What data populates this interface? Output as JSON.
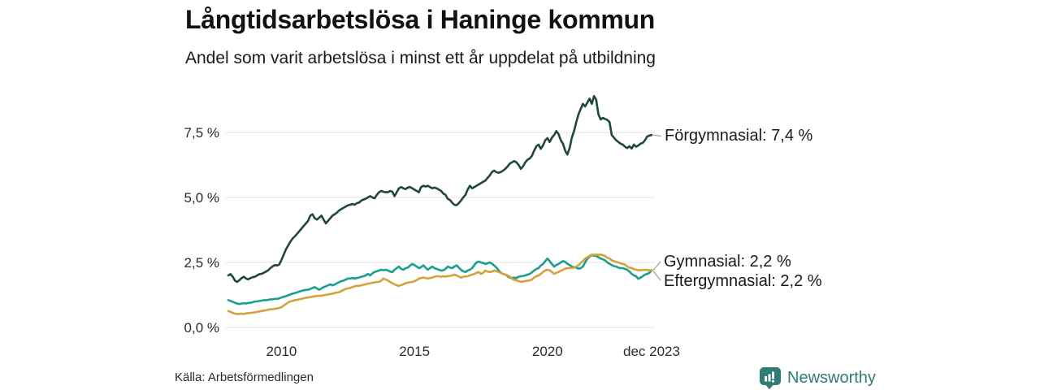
{
  "header": {
    "title": "Långtidsarbetslösa i Haninge kommun",
    "subtitle": "Andel som varit arbetslösa i minst ett år uppdelat på utbildning"
  },
  "footer": {
    "source": "Källa: Arbetsförmedlingen",
    "brand": "Newsworthy"
  },
  "colors": {
    "forgymnasial": "#1f4741",
    "gymnasial": "#18a08d",
    "eftergymnasial": "#d5a239",
    "grid": "#e3e3e3",
    "axis_text": "#2b2b2b",
    "connector": "#999999",
    "brand": "#2e7d74"
  },
  "chart_data": {
    "type": "line",
    "title": "Långtidsarbetslösa i Haninge kommun",
    "subtitle": "Andel som varit arbetslösa i minst ett år uppdelat på utbildning",
    "x_interval": "monthly",
    "x_range": [
      "2008-01",
      "2023-12"
    ],
    "ylim": [
      0,
      9.2
    ],
    "grid": "horizontal",
    "legend_position": "end-of-line-labels",
    "y_ticks": [
      {
        "value": 0.0,
        "label": "0,0 %"
      },
      {
        "value": 2.5,
        "label": "2,5 %"
      },
      {
        "value": 5.0,
        "label": "5,0 %"
      },
      {
        "value": 7.5,
        "label": "7,5 %"
      }
    ],
    "x_ticks": [
      {
        "index": 24,
        "label": "2010"
      },
      {
        "index": 84,
        "label": "2015"
      },
      {
        "index": 144,
        "label": "2020"
      },
      {
        "index": 191,
        "label": "dec 2023"
      }
    ],
    "series": [
      {
        "name": "Förgymnasial",
        "color": "#1f4741",
        "end_label": "Förgymnasial: 7,4 %",
        "end_value": "7,4 %",
        "values": [
          2.0,
          2.05,
          1.95,
          1.8,
          1.75,
          1.82,
          1.9,
          1.95,
          1.88,
          1.85,
          1.9,
          1.93,
          1.95,
          2.0,
          2.05,
          2.06,
          2.1,
          2.15,
          2.2,
          2.28,
          2.35,
          2.4,
          2.38,
          2.42,
          2.6,
          2.8,
          3.0,
          3.15,
          3.3,
          3.42,
          3.5,
          3.6,
          3.7,
          3.8,
          3.9,
          4.0,
          4.1,
          4.3,
          4.35,
          4.2,
          4.15,
          4.22,
          4.3,
          4.15,
          4.0,
          4.1,
          4.2,
          4.3,
          4.35,
          4.42,
          4.5,
          4.55,
          4.6,
          4.65,
          4.7,
          4.72,
          4.75,
          4.72,
          4.78,
          4.8,
          4.88,
          4.92,
          4.95,
          5.0,
          5.05,
          5.0,
          4.97,
          5.1,
          5.2,
          5.25,
          5.22,
          5.2,
          5.2,
          5.25,
          5.22,
          5.05,
          5.2,
          5.35,
          5.4,
          5.35,
          5.32,
          5.38,
          5.4,
          5.35,
          5.3,
          5.25,
          5.2,
          5.4,
          5.45,
          5.42,
          5.45,
          5.4,
          5.35,
          5.38,
          5.35,
          5.3,
          5.25,
          5.15,
          5.1,
          4.95,
          4.9,
          4.8,
          4.72,
          4.7,
          4.78,
          4.88,
          5.0,
          5.1,
          5.3,
          5.45,
          5.35,
          5.4,
          5.45,
          5.5,
          5.55,
          5.6,
          5.65,
          5.75,
          5.85,
          5.98,
          6.03,
          5.97,
          5.95,
          5.98,
          6.03,
          6.1,
          6.19,
          6.3,
          6.35,
          6.4,
          6.35,
          6.25,
          6.1,
          6.2,
          6.35,
          6.45,
          6.5,
          6.6,
          6.8,
          6.97,
          7.03,
          6.87,
          7.0,
          7.2,
          7.28,
          7.13,
          7.3,
          7.4,
          7.55,
          7.44,
          7.2,
          7.07,
          6.8,
          6.65,
          6.9,
          7.3,
          7.55,
          7.9,
          8.2,
          8.4,
          8.6,
          8.5,
          8.65,
          8.8,
          8.6,
          8.9,
          8.75,
          8.2,
          8.0,
          8.06,
          8.02,
          7.98,
          7.9,
          7.4,
          7.3,
          7.2,
          7.13,
          7.07,
          7.03,
          6.95,
          6.9,
          6.97,
          6.88,
          7.03,
          6.95,
          7.0,
          7.07,
          7.1,
          7.2,
          7.34,
          7.38,
          7.4
        ]
      },
      {
        "name": "Gymnasial",
        "color": "#18a08d",
        "end_label": "Gymnasial: 2,2 %",
        "end_value": "2,2 %",
        "values": [
          1.05,
          1.02,
          0.98,
          0.95,
          0.92,
          0.9,
          0.92,
          0.93,
          0.92,
          0.94,
          0.95,
          0.97,
          1.0,
          1.0,
          1.02,
          1.03,
          1.05,
          1.05,
          1.06,
          1.08,
          1.08,
          1.1,
          1.1,
          1.12,
          1.15,
          1.18,
          1.2,
          1.24,
          1.27,
          1.3,
          1.32,
          1.35,
          1.38,
          1.4,
          1.43,
          1.44,
          1.45,
          1.48,
          1.52,
          1.55,
          1.5,
          1.45,
          1.5,
          1.55,
          1.58,
          1.62,
          1.66,
          1.62,
          1.65,
          1.7,
          1.74,
          1.78,
          1.8,
          1.84,
          1.88,
          1.88,
          1.9,
          1.88,
          1.9,
          1.92,
          1.95,
          1.97,
          2.0,
          2.06,
          2.0,
          2.08,
          2.13,
          2.16,
          2.19,
          2.22,
          2.2,
          2.22,
          2.19,
          2.15,
          2.13,
          2.22,
          2.28,
          2.34,
          2.25,
          2.22,
          2.28,
          2.3,
          2.38,
          2.44,
          2.4,
          2.34,
          2.28,
          2.32,
          2.39,
          2.3,
          2.22,
          2.28,
          2.34,
          2.28,
          2.25,
          2.22,
          2.19,
          2.2,
          2.25,
          2.34,
          2.3,
          2.28,
          2.34,
          2.39,
          2.3,
          2.22,
          2.16,
          2.13,
          2.19,
          2.22,
          2.28,
          2.4,
          2.5,
          2.53,
          2.5,
          2.48,
          2.44,
          2.47,
          2.5,
          2.45,
          2.38,
          2.3,
          2.19,
          2.1,
          2.06,
          2.03,
          1.97,
          1.92,
          1.9,
          1.92,
          1.9,
          1.95,
          1.97,
          1.98,
          2.0,
          2.03,
          2.06,
          2.12,
          2.19,
          2.25,
          2.28,
          2.38,
          2.44,
          2.55,
          2.65,
          2.55,
          2.44,
          2.34,
          2.4,
          2.44,
          2.5,
          2.55,
          2.52,
          2.45,
          2.4,
          2.34,
          2.32,
          2.3,
          2.26,
          2.28,
          2.34,
          2.5,
          2.65,
          2.72,
          2.78,
          2.76,
          2.75,
          2.7,
          2.65,
          2.62,
          2.58,
          2.5,
          2.45,
          2.4,
          2.36,
          2.34,
          2.3,
          2.28,
          2.28,
          2.25,
          2.22,
          2.15,
          2.06,
          2.0,
          1.97,
          1.87,
          1.92,
          1.97,
          2.03,
          2.06,
          2.1,
          2.2
        ]
      },
      {
        "name": "Eftergymnasial",
        "color": "#d5a239",
        "end_label": "Eftergymnasial: 2,2 %",
        "end_value": "2,2 %",
        "values": [
          0.63,
          0.6,
          0.56,
          0.53,
          0.52,
          0.52,
          0.53,
          0.52,
          0.54,
          0.55,
          0.56,
          0.57,
          0.58,
          0.6,
          0.62,
          0.63,
          0.65,
          0.66,
          0.68,
          0.7,
          0.7,
          0.72,
          0.73,
          0.75,
          0.78,
          0.84,
          0.9,
          0.96,
          1.0,
          1.02,
          1.05,
          1.06,
          1.08,
          1.1,
          1.12,
          1.14,
          1.15,
          1.17,
          1.18,
          1.2,
          1.21,
          1.22,
          1.22,
          1.24,
          1.25,
          1.27,
          1.28,
          1.3,
          1.32,
          1.34,
          1.36,
          1.4,
          1.44,
          1.48,
          1.5,
          1.52,
          1.55,
          1.58,
          1.6,
          1.6,
          1.62,
          1.64,
          1.66,
          1.68,
          1.7,
          1.72,
          1.73,
          1.75,
          1.75,
          1.8,
          1.88,
          1.84,
          1.8,
          1.75,
          1.7,
          1.66,
          1.62,
          1.6,
          1.63,
          1.66,
          1.7,
          1.72,
          1.74,
          1.75,
          1.78,
          1.82,
          1.88,
          1.9,
          1.92,
          1.9,
          1.88,
          1.9,
          1.92,
          1.95,
          1.97,
          1.97,
          1.95,
          1.97,
          1.96,
          1.97,
          1.98,
          2.0,
          2.03,
          2.0,
          1.96,
          1.92,
          1.95,
          1.96,
          1.97,
          2.0,
          2.03,
          2.06,
          2.1,
          2.13,
          2.06,
          2.1,
          2.19,
          2.15,
          2.13,
          2.15,
          2.19,
          2.16,
          2.13,
          2.1,
          2.06,
          2.03,
          2.0,
          1.95,
          1.87,
          1.83,
          1.81,
          1.78,
          1.76,
          1.77,
          1.78,
          1.8,
          1.81,
          1.84,
          1.92,
          1.97,
          2.0,
          2.06,
          2.13,
          2.19,
          2.22,
          2.2,
          2.13,
          2.06,
          2.1,
          2.13,
          2.18,
          2.22,
          2.26,
          2.28,
          2.28,
          2.29,
          2.3,
          2.34,
          2.39,
          2.48,
          2.55,
          2.65,
          2.7,
          2.75,
          2.8,
          2.8,
          2.8,
          2.8,
          2.8,
          2.78,
          2.75,
          2.68,
          2.65,
          2.58,
          2.55,
          2.52,
          2.5,
          2.46,
          2.44,
          2.42,
          2.34,
          2.3,
          2.28,
          2.24,
          2.22,
          2.2,
          2.2,
          2.21,
          2.22,
          2.21,
          2.2,
          2.2
        ]
      }
    ]
  }
}
